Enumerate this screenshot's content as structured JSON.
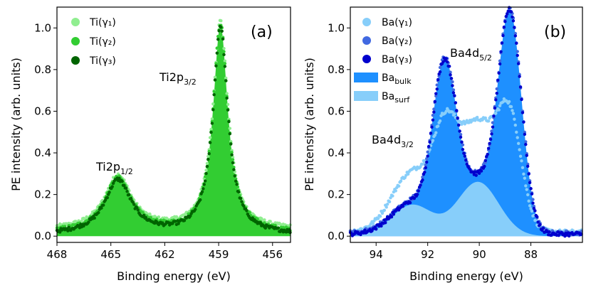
{
  "chart_data": [
    {
      "panel": "(a)",
      "type": "area",
      "xlabel": "Binding energy (eV)",
      "ylabel": "PE intensity (arb. units)",
      "xlim": [
        468,
        455
      ],
      "ylim": [
        -0.03,
        1.1
      ],
      "xticks": [
        468,
        465,
        462,
        459,
        456
      ],
      "yticks": [
        0.0,
        0.2,
        0.4,
        0.6,
        0.8,
        1.0
      ],
      "ytick_labels": [
        "0.0",
        "0.2",
        "0.4",
        "0.6",
        "0.8",
        "1.0"
      ],
      "legend_position": "top-left",
      "series": [
        {
          "name": "Ti(γ₁)",
          "color": "#90ee90",
          "marker": "dot"
        },
        {
          "name": "Ti(γ₂)",
          "color": "#32cd32",
          "marker": "dot"
        },
        {
          "name": "Ti(γ₃)",
          "color": "#006400",
          "marker": "dot"
        }
      ],
      "fill_color": "#32cd32",
      "peaks": [
        {
          "label": "Ti2p",
          "subscript": "1/2",
          "center": 464.6,
          "height": 0.26,
          "width": 0.9,
          "shape": "lorentzian"
        },
        {
          "label": "Ti2p",
          "subscript": "3/2",
          "center": 458.9,
          "height": 1.0,
          "width": 0.5,
          "shape": "lorentzian"
        }
      ]
    },
    {
      "panel": "(b)",
      "type": "area",
      "xlabel": "Binding energy (eV)",
      "ylabel": "PE intensity (arb. units)",
      "xlim": [
        95,
        86
      ],
      "ylim": [
        -0.03,
        1.1
      ],
      "xticks": [
        94,
        92,
        90,
        88
      ],
      "yticks": [
        0.0,
        0.2,
        0.4,
        0.6,
        0.8,
        1.0
      ],
      "ytick_labels": [
        "0.0",
        "0.2",
        "0.4",
        "0.6",
        "0.8",
        "1.0"
      ],
      "legend_position": "top-left",
      "series": [
        {
          "name": "Ba(γ₁)",
          "color": "#87cefa",
          "marker": "dot"
        },
        {
          "name": "Ba(γ₂)",
          "color": "#4169e1",
          "marker": "dot"
        },
        {
          "name": "Ba(γ₃)",
          "color": "#0000cd",
          "marker": "dot"
        }
      ],
      "components": [
        {
          "name": "Ba",
          "subscript": "bulk",
          "color": "#1e90ff"
        },
        {
          "name": "Ba",
          "subscript": "surf",
          "color": "#87cefa"
        }
      ],
      "bulk_peaks": [
        {
          "center": 91.35,
          "height": 0.73,
          "width": 0.45
        },
        {
          "center": 88.8,
          "height": 1.0,
          "width": 0.45
        }
      ],
      "surface_peaks": [
        {
          "center": 92.6,
          "height": 0.15,
          "width": 0.8
        },
        {
          "center": 90.05,
          "height": 0.26,
          "width": 0.8
        }
      ],
      "annotations": [
        {
          "label": "Ba4d",
          "subscript": "3/2"
        },
        {
          "label": "Ba4d",
          "subscript": "5/2"
        }
      ]
    }
  ]
}
